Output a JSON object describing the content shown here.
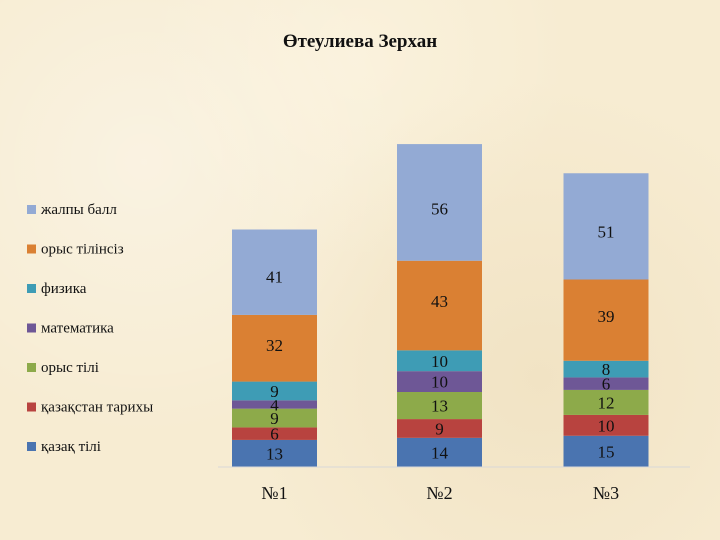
{
  "chart_data": {
    "type": "bar",
    "stacked": true,
    "title": "Өтеулиева Зерхан",
    "categories": [
      "№1",
      "№2",
      "№3"
    ],
    "series": [
      {
        "name": "қазақ тілі",
        "values": [
          13,
          14,
          15
        ],
        "color": "#4a74b0"
      },
      {
        "name": "қазақстан тарихы",
        "values": [
          6,
          9,
          10
        ],
        "color": "#b8433f"
      },
      {
        "name": "орыс тілі",
        "values": [
          9,
          13,
          12
        ],
        "color": "#8daa4a"
      },
      {
        "name": "математика",
        "values": [
          4,
          10,
          6
        ],
        "color": "#6e5796"
      },
      {
        "name": "физика",
        "values": [
          9,
          10,
          8
        ],
        "color": "#3e9cb5"
      },
      {
        "name": "орыс тілінсіз",
        "values": [
          32,
          43,
          39
        ],
        "color": "#da8033"
      },
      {
        "name": "жалпы балл",
        "values": [
          41,
          56,
          51
        ],
        "color": "#93aad4"
      }
    ],
    "xlabel": "",
    "ylabel": "",
    "ylim": [
      0,
      180
    ],
    "grid": false,
    "legend_position": "left"
  }
}
